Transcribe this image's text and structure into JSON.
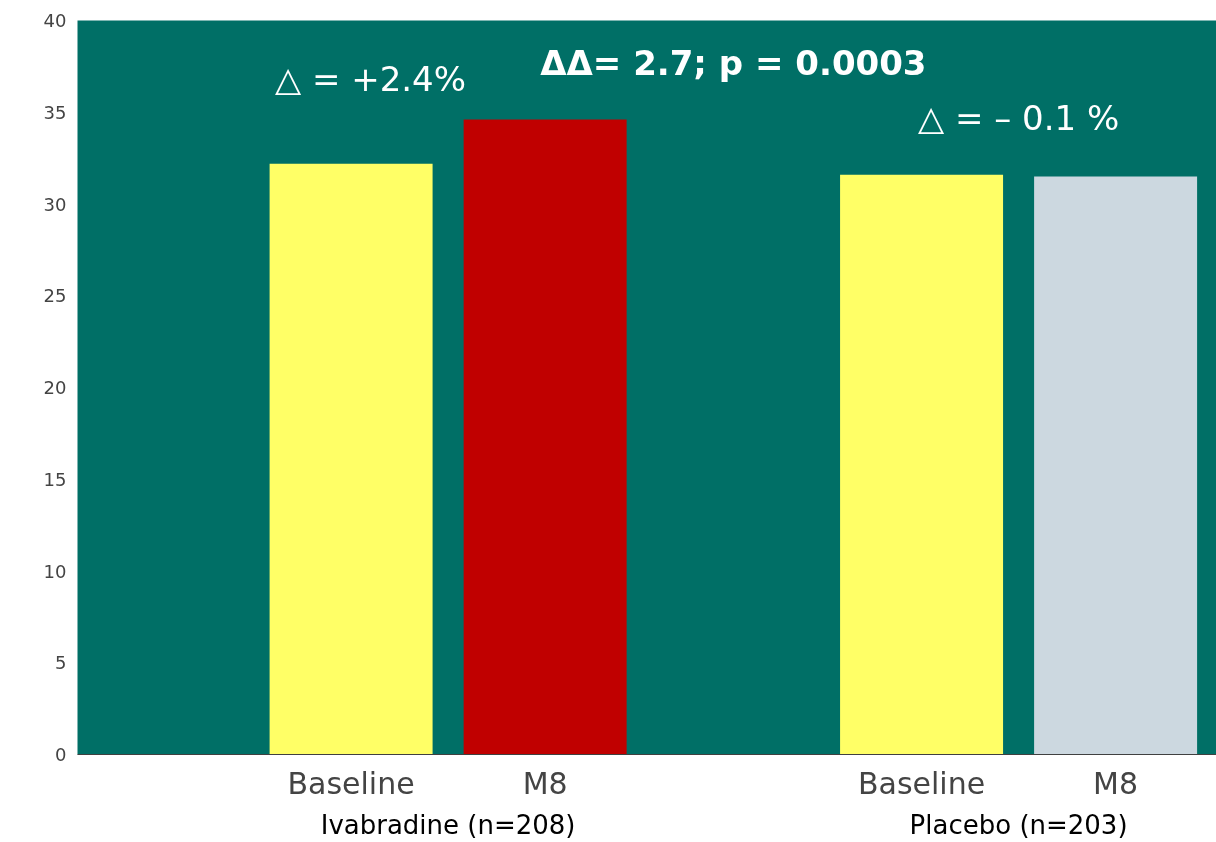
{
  "chart_data": {
    "type": "bar",
    "categories": [
      "Baseline",
      "M8",
      "Baseline",
      "M8"
    ],
    "values": [
      32.2,
      34.6,
      31.6,
      31.5
    ],
    "colors": [
      "#ffff66",
      "#c00000",
      "#ffff66",
      "#ccd8e0"
    ],
    "ylim": [
      0,
      40
    ],
    "yticks": [
      0,
      5,
      10,
      15,
      20,
      25,
      30,
      35,
      40
    ],
    "grid": false,
    "annotations": [
      "ΔΔ= 2.7; p = 0.0003",
      "△ = +2.4%",
      "△ = – 0.1 %",
      "Ivabradine (n=208)",
      "Placebo (n=203)"
    ]
  }
}
